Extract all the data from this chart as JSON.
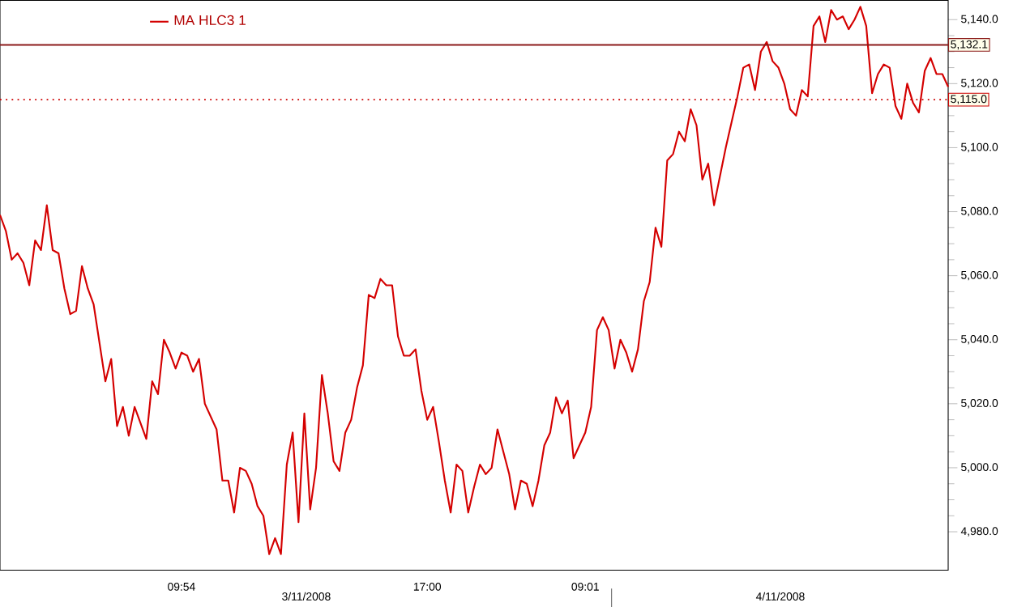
{
  "chart_data": {
    "type": "line",
    "legend": "top left",
    "marker": "none",
    "line_style": "solid",
    "ylim": [
      4968,
      5146
    ],
    "categories": [
      null,
      null,
      null,
      null,
      null,
      null,
      null,
      null,
      null,
      null,
      null,
      null,
      null,
      null,
      null,
      null,
      null,
      null,
      null,
      null,
      null,
      null,
      null,
      null,
      null,
      null,
      null,
      null,
      null,
      null,
      null,
      "09:54",
      null,
      null,
      null,
      null,
      null,
      null,
      null,
      null,
      null,
      null,
      null,
      null,
      null,
      null,
      null,
      null,
      null,
      null,
      null,
      null,
      null,
      null,
      null,
      null,
      null,
      null,
      null,
      null,
      null,
      null,
      null,
      null,
      null,
      null,
      null,
      null,
      null,
      null,
      null,
      null,
      null,
      "17:00",
      null,
      null,
      null,
      null,
      null,
      null,
      null,
      null,
      null,
      null,
      null,
      null,
      null,
      null,
      null,
      null,
      null,
      null,
      null,
      null,
      null,
      null,
      null,
      null,
      null,
      null,
      "09:01",
      null,
      null,
      null,
      null,
      null,
      null,
      null,
      null,
      null,
      null,
      null,
      null,
      null,
      null,
      null,
      null,
      null,
      null,
      null,
      null,
      null,
      null,
      null,
      null,
      null,
      null,
      null,
      null,
      null,
      null,
      null,
      null,
      null,
      null,
      null,
      null,
      null,
      null,
      null,
      null,
      null,
      null,
      null,
      null,
      null,
      null,
      null,
      null,
      null,
      null,
      null,
      null,
      null,
      null,
      null,
      null,
      null,
      null,
      null,
      null,
      null,
      null
    ],
    "yticks": [
      {
        "value": 4980,
        "label": "4,980.0"
      },
      {
        "value": 5000,
        "label": "5,000.0"
      },
      {
        "value": 5020,
        "label": "5,020.0"
      },
      {
        "value": 5040,
        "label": "5,040.0"
      },
      {
        "value": 5060,
        "label": "5,060.0"
      },
      {
        "value": 5080,
        "label": "5,080.0"
      },
      {
        "value": 5100,
        "label": "5,100.0"
      },
      {
        "value": 5120,
        "label": "5,120.0"
      },
      {
        "value": 5140,
        "label": "5,140.0"
      }
    ],
    "annotations": [
      "3/11/2008",
      "4/11/2008"
    ],
    "ref_lines": [
      {
        "axis": "y",
        "value": 5132.1,
        "label": "5,132.1",
        "color": "#8b1a1a",
        "line_style": "solid"
      },
      {
        "axis": "y",
        "value": 5115.0,
        "label": "5,115.0",
        "color": "#cc0000",
        "line_style": "dotted"
      }
    ],
    "series": [
      {
        "name": "MA HLC3  1",
        "color": "#d40000",
        "values": [
          5079,
          5074,
          5065,
          5067,
          5064,
          5057,
          5071,
          5068,
          5082,
          5068,
          5067,
          5056,
          5048,
          5049,
          5063,
          5056,
          5051,
          5039,
          5027,
          5034,
          5013,
          5019,
          5010,
          5019,
          5014,
          5009,
          5027,
          5023,
          5040,
          5036,
          5031,
          5036,
          5035,
          5030,
          5034,
          5020,
          5016,
          5012,
          4996,
          4996,
          4986,
          5000,
          4999,
          4995,
          4988,
          4985,
          4973,
          4978,
          4973,
          5001,
          5011,
          4983,
          5017,
          4987,
          5000,
          5029,
          5017,
          5002,
          4999,
          5011,
          5015,
          5025,
          5032,
          5054,
          5053,
          5059,
          5057,
          5057,
          5041,
          5035,
          5035,
          5037,
          5024,
          5015,
          5019,
          5008,
          4996,
          4986,
          5001,
          4999,
          4986,
          4994,
          5001,
          4998,
          5000,
          5012,
          5005,
          4998,
          4987,
          4996,
          4995,
          4988,
          4996,
          5007,
          5011,
          5022,
          5017,
          5021,
          5003,
          5007,
          5011,
          5019,
          5043,
          5047,
          5043,
          5031,
          5040,
          5036,
          5030,
          5037,
          5052,
          5058,
          5075,
          5069,
          5096,
          5098,
          5105,
          5102,
          5112,
          5107,
          5090,
          5095,
          5082,
          5091,
          5100,
          5108,
          5116,
          5125,
          5126,
          5118,
          5130,
          5133,
          5127,
          5125,
          5120,
          5112,
          5110,
          5118,
          5116,
          5138,
          5141,
          5133,
          5143,
          5140,
          5141,
          5137,
          5140,
          5144,
          5138,
          5117,
          5123,
          5126,
          5125,
          5113,
          5109,
          5120,
          5114,
          5111,
          5124,
          5128,
          5123,
          5123,
          5119
        ]
      }
    ]
  }
}
